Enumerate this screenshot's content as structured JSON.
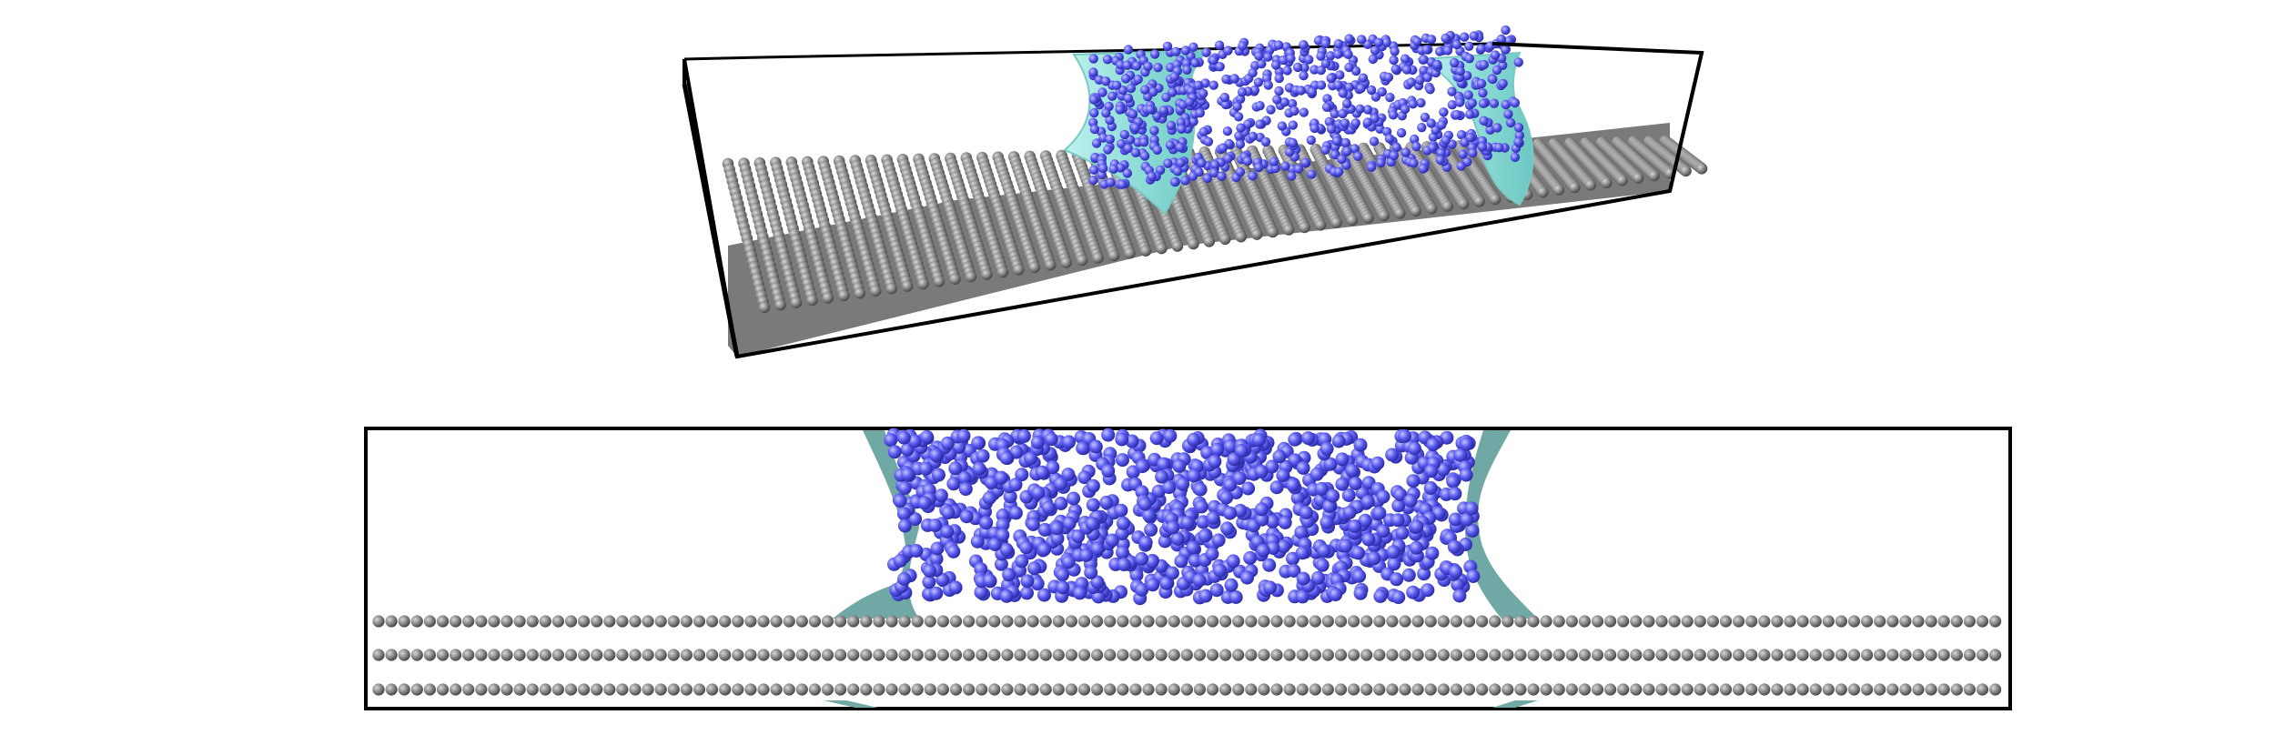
{
  "colors": {
    "background": "#ffffff",
    "frame": "#000000",
    "substrate_atom": "#808080",
    "substrate_atom_highlight": "#d0d0d0",
    "liquid_atom": "#5555ee",
    "liquid_atom_highlight": "#b8b8ff",
    "interface_surface": "#9ee5e1",
    "interface_surface_side_view": "#6fa8a4"
  },
  "panels": [
    {
      "id": "perspective-view",
      "description_name": "perspective-view-panel"
    },
    {
      "id": "side-view",
      "description_name": "side-view-panel"
    }
  ]
}
